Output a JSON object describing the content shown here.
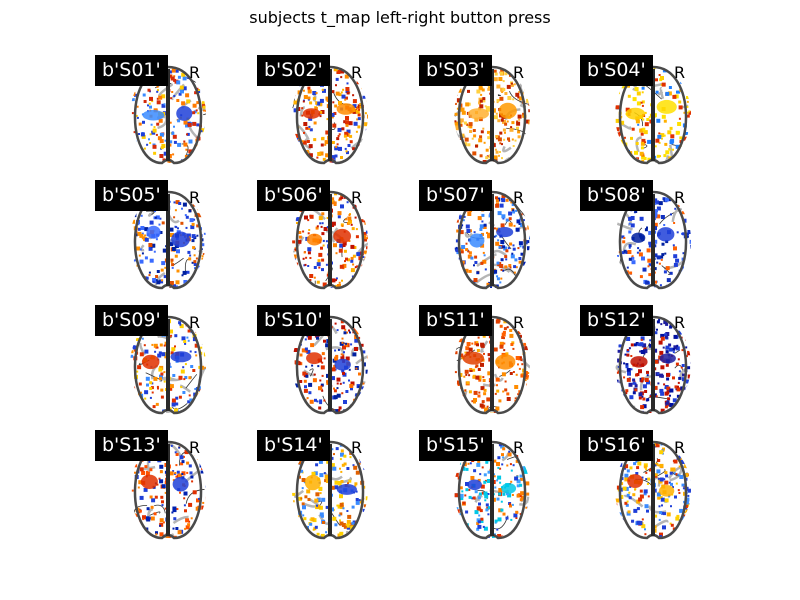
{
  "figure": {
    "title": "subjects t_map left-right button press",
    "side_label": "R",
    "panels": [
      {
        "label": "b'S01'",
        "palette": [
          "#1f3fd8",
          "#3a8bff",
          "#ff7a00",
          "#ffcc00",
          "#d42a0a"
        ]
      },
      {
        "label": "b'S02'",
        "palette": [
          "#ff8c00",
          "#e03000",
          "#ffb000",
          "#c01800",
          "#1f3fd8"
        ]
      },
      {
        "label": "b'S03'",
        "palette": [
          "#ff9a00",
          "#ffb030",
          "#e05000",
          "#ffd040",
          "#c02000"
        ]
      },
      {
        "label": "b'S04'",
        "palette": [
          "#ffe000",
          "#ffd000",
          "#ffb000",
          "#e03000",
          "#1f7fff"
        ]
      },
      {
        "label": "b'S05'",
        "palette": [
          "#1f3fd8",
          "#3a6bff",
          "#e05000",
          "#ff9000",
          "#0020a0"
        ]
      },
      {
        "label": "b'S06'",
        "palette": [
          "#e03000",
          "#ff8000",
          "#1f3fd8",
          "#ffb000",
          "#c01000"
        ]
      },
      {
        "label": "b'S07'",
        "palette": [
          "#1f3fd8",
          "#3a8bff",
          "#e04000",
          "#ff8000",
          "#0020b0"
        ]
      },
      {
        "label": "b'S08'",
        "palette": [
          "#1f3fd8",
          "#0020a0",
          "#3a6bff",
          "#ff6000",
          "#1030c0"
        ]
      },
      {
        "label": "b'S09'",
        "palette": [
          "#1f3fd8",
          "#e03000",
          "#ff9000",
          "#3a8bff",
          "#ffd000"
        ]
      },
      {
        "label": "b'S10'",
        "palette": [
          "#1f3fd8",
          "#e03000",
          "#ff7000",
          "#c01000",
          "#0020a0"
        ]
      },
      {
        "label": "b'S11'",
        "palette": [
          "#ff8c00",
          "#e04000",
          "#ffb000",
          "#c02000",
          "#ff6000"
        ]
      },
      {
        "label": "b'S12'",
        "palette": [
          "#1f1fa0",
          "#c01000",
          "#1f3fd8",
          "#e03000",
          "#0010a0"
        ]
      },
      {
        "label": "b'S13'",
        "palette": [
          "#1f3fd8",
          "#e03000",
          "#ff8000",
          "#0020b0",
          "#ff5000"
        ]
      },
      {
        "label": "b'S14'",
        "palette": [
          "#1f3fd8",
          "#ffb000",
          "#3a8bff",
          "#e06000",
          "#ffd000"
        ]
      },
      {
        "label": "b'S15'",
        "palette": [
          "#00c8e8",
          "#1f3fd8",
          "#e03000",
          "#40a0ff",
          "#ff8000"
        ]
      },
      {
        "label": "b'S16'",
        "palette": [
          "#ffb000",
          "#e03000",
          "#1f3fd8",
          "#ffd000",
          "#3a8bff"
        ]
      }
    ]
  }
}
